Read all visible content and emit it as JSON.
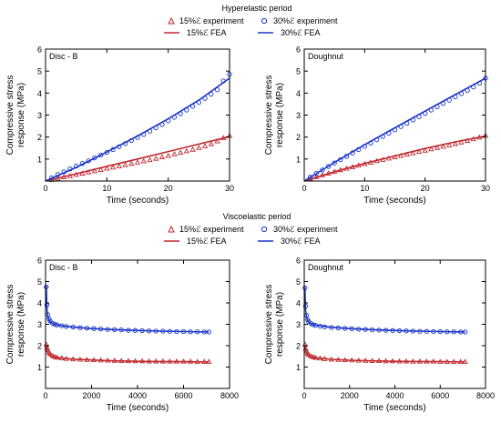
{
  "colors": {
    "s15": "#c0282d",
    "s30": "#1a35c8",
    "axis": "#000000"
  },
  "sections": [
    {
      "title": "Hyperelastic period",
      "legend": {
        "s15_exp": "15%ℰ experiment",
        "s30_exp": "30%ℰ experiment",
        "s15_fea": "15%ℰ FEA",
        "s30_fea": "30%ℰ FEA"
      }
    },
    {
      "title": "Viscoelastic period",
      "legend": {
        "s15_exp": "15%ℰ experiment",
        "s30_exp": "30%ℰ experiment",
        "s15_fea": "15%ℰ FEA",
        "s30_fea": "30%ℰ FEA"
      }
    }
  ],
  "chart_data": [
    {
      "type": "scatter",
      "panel_label": "Disc - B",
      "xlabel": "Time (seconds)",
      "ylabel": [
        "Compressive stress",
        "response (MPa)"
      ],
      "xlim": [
        0,
        30
      ],
      "ylim": [
        0,
        6
      ],
      "xticks": [
        0,
        10,
        20,
        30
      ],
      "yticks": [
        1,
        2,
        3,
        4,
        5,
        6
      ],
      "series": [
        {
          "name": "15%ℰ experiment",
          "kind": "exp",
          "marker": "triangle",
          "color": "#c0282d",
          "x": [
            1,
            2,
            3,
            4,
            5,
            6,
            7,
            8,
            9,
            10,
            11,
            12,
            13,
            14,
            15,
            16,
            17,
            18,
            19,
            20,
            21,
            22,
            23,
            24,
            25,
            26,
            27,
            28,
            29,
            30
          ],
          "y": [
            0.05,
            0.11,
            0.17,
            0.22,
            0.28,
            0.33,
            0.39,
            0.44,
            0.5,
            0.56,
            0.61,
            0.67,
            0.72,
            0.78,
            0.84,
            0.89,
            0.95,
            1.01,
            1.08,
            1.14,
            1.21,
            1.28,
            1.35,
            1.42,
            1.5,
            1.58,
            1.68,
            1.8,
            1.95,
            2.05
          ]
        },
        {
          "name": "15%ℰ FEA",
          "kind": "fea",
          "color": "#c0282d",
          "x": [
            0,
            5,
            10,
            15,
            20,
            25,
            30
          ],
          "y": [
            0,
            0.33,
            0.67,
            1.0,
            1.34,
            1.68,
            2.02
          ]
        },
        {
          "name": "30%ℰ experiment",
          "kind": "exp",
          "marker": "circle",
          "color": "#1a35c8",
          "x": [
            1,
            2,
            3,
            4,
            5,
            6,
            7,
            8,
            9,
            10,
            11,
            12,
            13,
            14,
            15,
            16,
            17,
            18,
            19,
            20,
            21,
            22,
            23,
            24,
            25,
            26,
            27,
            28,
            29,
            30
          ],
          "y": [
            0.15,
            0.3,
            0.42,
            0.55,
            0.68,
            0.8,
            0.92,
            1.05,
            1.18,
            1.3,
            1.43,
            1.56,
            1.7,
            1.84,
            1.98,
            2.12,
            2.27,
            2.42,
            2.57,
            2.74,
            2.9,
            3.06,
            3.23,
            3.4,
            3.58,
            3.76,
            3.95,
            4.15,
            4.55,
            4.85
          ]
        },
        {
          "name": "30%ℰ FEA",
          "kind": "fea",
          "color": "#1a35c8",
          "x": [
            0,
            5,
            10,
            15,
            20,
            25,
            30
          ],
          "y": [
            0,
            0.62,
            1.32,
            2.05,
            2.83,
            3.68,
            4.68
          ]
        }
      ]
    },
    {
      "type": "scatter",
      "panel_label": "Doughnut",
      "xlabel": "Time (seconds)",
      "ylabel": [
        "Compressive stress",
        "response (MPa)"
      ],
      "xlim": [
        0,
        30
      ],
      "ylim": [
        0,
        6
      ],
      "xticks": [
        0,
        10,
        20,
        30
      ],
      "yticks": [
        1,
        2,
        3,
        4,
        5,
        6
      ],
      "series": [
        {
          "name": "15%ℰ experiment",
          "kind": "exp",
          "marker": "triangle",
          "color": "#c0282d",
          "x": [
            1,
            2,
            3,
            4,
            5,
            6,
            7,
            8,
            9,
            10,
            11,
            12,
            13,
            14,
            15,
            16,
            17,
            18,
            19,
            20,
            21,
            22,
            23,
            24,
            25,
            26,
            27,
            28,
            29,
            30
          ],
          "y": [
            0.1,
            0.18,
            0.26,
            0.34,
            0.42,
            0.49,
            0.56,
            0.63,
            0.7,
            0.77,
            0.83,
            0.9,
            0.96,
            1.02,
            1.08,
            1.14,
            1.2,
            1.26,
            1.32,
            1.38,
            1.44,
            1.5,
            1.56,
            1.62,
            1.68,
            1.75,
            1.82,
            1.9,
            1.98,
            2.06
          ]
        },
        {
          "name": "15%ℰ FEA",
          "kind": "fea",
          "color": "#c0282d",
          "x": [
            0,
            5,
            10,
            15,
            20,
            25,
            30
          ],
          "y": [
            0,
            0.42,
            0.8,
            1.14,
            1.48,
            1.78,
            2.05
          ]
        },
        {
          "name": "30%ℰ experiment",
          "kind": "exp",
          "marker": "circle",
          "color": "#1a35c8",
          "x": [
            1,
            2,
            3,
            4,
            5,
            6,
            7,
            8,
            9,
            10,
            11,
            12,
            13,
            14,
            15,
            16,
            17,
            18,
            19,
            20,
            21,
            22,
            23,
            24,
            25,
            26,
            27,
            28,
            29,
            30
          ],
          "y": [
            0.18,
            0.35,
            0.5,
            0.66,
            0.82,
            0.97,
            1.12,
            1.28,
            1.43,
            1.58,
            1.73,
            1.88,
            2.03,
            2.18,
            2.33,
            2.48,
            2.63,
            2.78,
            2.93,
            3.08,
            3.23,
            3.38,
            3.53,
            3.68,
            3.83,
            3.98,
            4.13,
            4.28,
            4.45,
            4.68
          ]
        },
        {
          "name": "30%ℰ FEA",
          "kind": "fea",
          "color": "#1a35c8",
          "x": [
            0,
            5,
            10,
            15,
            20,
            25,
            30
          ],
          "y": [
            0,
            0.85,
            1.65,
            2.42,
            3.18,
            3.93,
            4.68
          ]
        }
      ]
    },
    {
      "type": "scatter",
      "panel_label": "Disc - B",
      "xlabel": "Time (seconds)",
      "ylabel": [
        "Compressive stress",
        "response (MPa)"
      ],
      "xlim": [
        0,
        8000
      ],
      "ylim": [
        0,
        6
      ],
      "xticks": [
        0,
        2000,
        4000,
        6000,
        8000
      ],
      "yticks": [
        1,
        2,
        3,
        4,
        5,
        6
      ],
      "series": [
        {
          "name": "15%ℰ experiment",
          "kind": "exp",
          "marker": "triangle",
          "color": "#c0282d",
          "x": [
            30,
            60,
            100,
            150,
            200,
            300,
            400,
            500,
            700,
            900,
            1200,
            1500,
            1800,
            2100,
            2400,
            2700,
            3000,
            3300,
            3600,
            3900,
            4200,
            4500,
            4800,
            5100,
            5400,
            5700,
            6000,
            6300,
            6600,
            6900,
            7100
          ],
          "y": [
            2.05,
            1.9,
            1.78,
            1.68,
            1.6,
            1.52,
            1.47,
            1.44,
            1.41,
            1.38,
            1.36,
            1.34,
            1.33,
            1.32,
            1.31,
            1.3,
            1.29,
            1.28,
            1.28,
            1.27,
            1.27,
            1.26,
            1.26,
            1.26,
            1.25,
            1.25,
            1.25,
            1.25,
            1.24,
            1.24,
            1.24
          ]
        },
        {
          "name": "15%ℰ FEA",
          "kind": "fea",
          "color": "#c0282d",
          "x": [
            30,
            60,
            100,
            150,
            200,
            300,
            500,
            800,
            1200,
            2000,
            3000,
            4000,
            5000,
            6000,
            7100
          ],
          "y": [
            2.0,
            1.8,
            1.68,
            1.6,
            1.55,
            1.5,
            1.45,
            1.41,
            1.37,
            1.33,
            1.29,
            1.27,
            1.26,
            1.25,
            1.24
          ]
        },
        {
          "name": "30%ℰ experiment",
          "kind": "exp",
          "marker": "circle",
          "color": "#1a35c8",
          "x": [
            30,
            60,
            100,
            150,
            200,
            300,
            400,
            500,
            700,
            900,
            1200,
            1500,
            1800,
            2100,
            2400,
            2700,
            3000,
            3300,
            3600,
            3900,
            4200,
            4500,
            4800,
            5100,
            5400,
            5700,
            6000,
            6300,
            6600,
            6900,
            7100
          ],
          "y": [
            4.75,
            3.9,
            3.45,
            3.25,
            3.15,
            3.05,
            3.0,
            2.97,
            2.93,
            2.9,
            2.87,
            2.84,
            2.82,
            2.8,
            2.78,
            2.76,
            2.75,
            2.74,
            2.72,
            2.71,
            2.7,
            2.69,
            2.68,
            2.68,
            2.67,
            2.66,
            2.66,
            2.65,
            2.65,
            2.64,
            2.64
          ]
        },
        {
          "name": "30%ℰ FEA",
          "kind": "fea",
          "color": "#1a35c8",
          "x": [
            30,
            60,
            100,
            150,
            200,
            300,
            500,
            800,
            1200,
            2000,
            3000,
            4000,
            5000,
            6000,
            7100
          ],
          "y": [
            4.8,
            3.7,
            3.35,
            3.2,
            3.12,
            3.04,
            2.97,
            2.92,
            2.87,
            2.8,
            2.75,
            2.71,
            2.68,
            2.66,
            2.64
          ]
        }
      ]
    },
    {
      "type": "scatter",
      "panel_label": "Doughnut",
      "xlabel": "Time (seconds)",
      "ylabel": [
        "Compressive stress",
        "response (MPa)"
      ],
      "xlim": [
        0,
        8000
      ],
      "ylim": [
        0,
        6
      ],
      "xticks": [
        0,
        2000,
        4000,
        6000,
        8000
      ],
      "yticks": [
        1,
        2,
        3,
        4,
        5,
        6
      ],
      "series": [
        {
          "name": "15%ℰ experiment",
          "kind": "exp",
          "marker": "triangle",
          "color": "#c0282d",
          "x": [
            30,
            60,
            100,
            150,
            200,
            300,
            400,
            500,
            700,
            900,
            1200,
            1500,
            1800,
            2100,
            2400,
            2700,
            3000,
            3300,
            3600,
            3900,
            4200,
            4500,
            4800,
            5100,
            5400,
            5700,
            6000,
            6300,
            6600,
            6900,
            7100
          ],
          "y": [
            2.05,
            1.85,
            1.72,
            1.63,
            1.56,
            1.5,
            1.46,
            1.43,
            1.4,
            1.37,
            1.35,
            1.33,
            1.32,
            1.31,
            1.3,
            1.29,
            1.28,
            1.28,
            1.27,
            1.27,
            1.26,
            1.26,
            1.25,
            1.25,
            1.25,
            1.25,
            1.24,
            1.24,
            1.24,
            1.24,
            1.24
          ]
        },
        {
          "name": "15%ℰ FEA",
          "kind": "fea",
          "color": "#c0282d",
          "x": [
            30,
            60,
            100,
            150,
            200,
            300,
            500,
            800,
            1200,
            2000,
            3000,
            4000,
            5000,
            6000,
            7100
          ],
          "y": [
            2.0,
            1.78,
            1.66,
            1.58,
            1.53,
            1.48,
            1.44,
            1.4,
            1.36,
            1.32,
            1.29,
            1.27,
            1.26,
            1.25,
            1.24
          ]
        },
        {
          "name": "30%ℰ experiment",
          "kind": "exp",
          "marker": "circle",
          "color": "#1a35c8",
          "x": [
            30,
            60,
            100,
            150,
            200,
            300,
            400,
            500,
            700,
            900,
            1200,
            1500,
            1800,
            2100,
            2400,
            2700,
            3000,
            3300,
            3600,
            3900,
            4200,
            4500,
            4800,
            5100,
            5400,
            5700,
            6000,
            6300,
            6600,
            6900,
            7100
          ],
          "y": [
            4.7,
            3.85,
            3.42,
            3.22,
            3.12,
            3.03,
            2.98,
            2.95,
            2.91,
            2.88,
            2.85,
            2.83,
            2.81,
            2.79,
            2.77,
            2.76,
            2.74,
            2.73,
            2.72,
            2.71,
            2.7,
            2.69,
            2.68,
            2.67,
            2.67,
            2.66,
            2.66,
            2.65,
            2.65,
            2.64,
            2.64
          ]
        },
        {
          "name": "30%ℰ FEA",
          "kind": "fea",
          "color": "#1a35c8",
          "x": [
            30,
            60,
            100,
            150,
            200,
            300,
            500,
            800,
            1200,
            2000,
            3000,
            4000,
            5000,
            6000,
            7100
          ],
          "y": [
            4.75,
            3.65,
            3.32,
            3.18,
            3.1,
            3.02,
            2.96,
            2.91,
            2.86,
            2.8,
            2.75,
            2.71,
            2.68,
            2.66,
            2.64
          ]
        }
      ]
    }
  ]
}
